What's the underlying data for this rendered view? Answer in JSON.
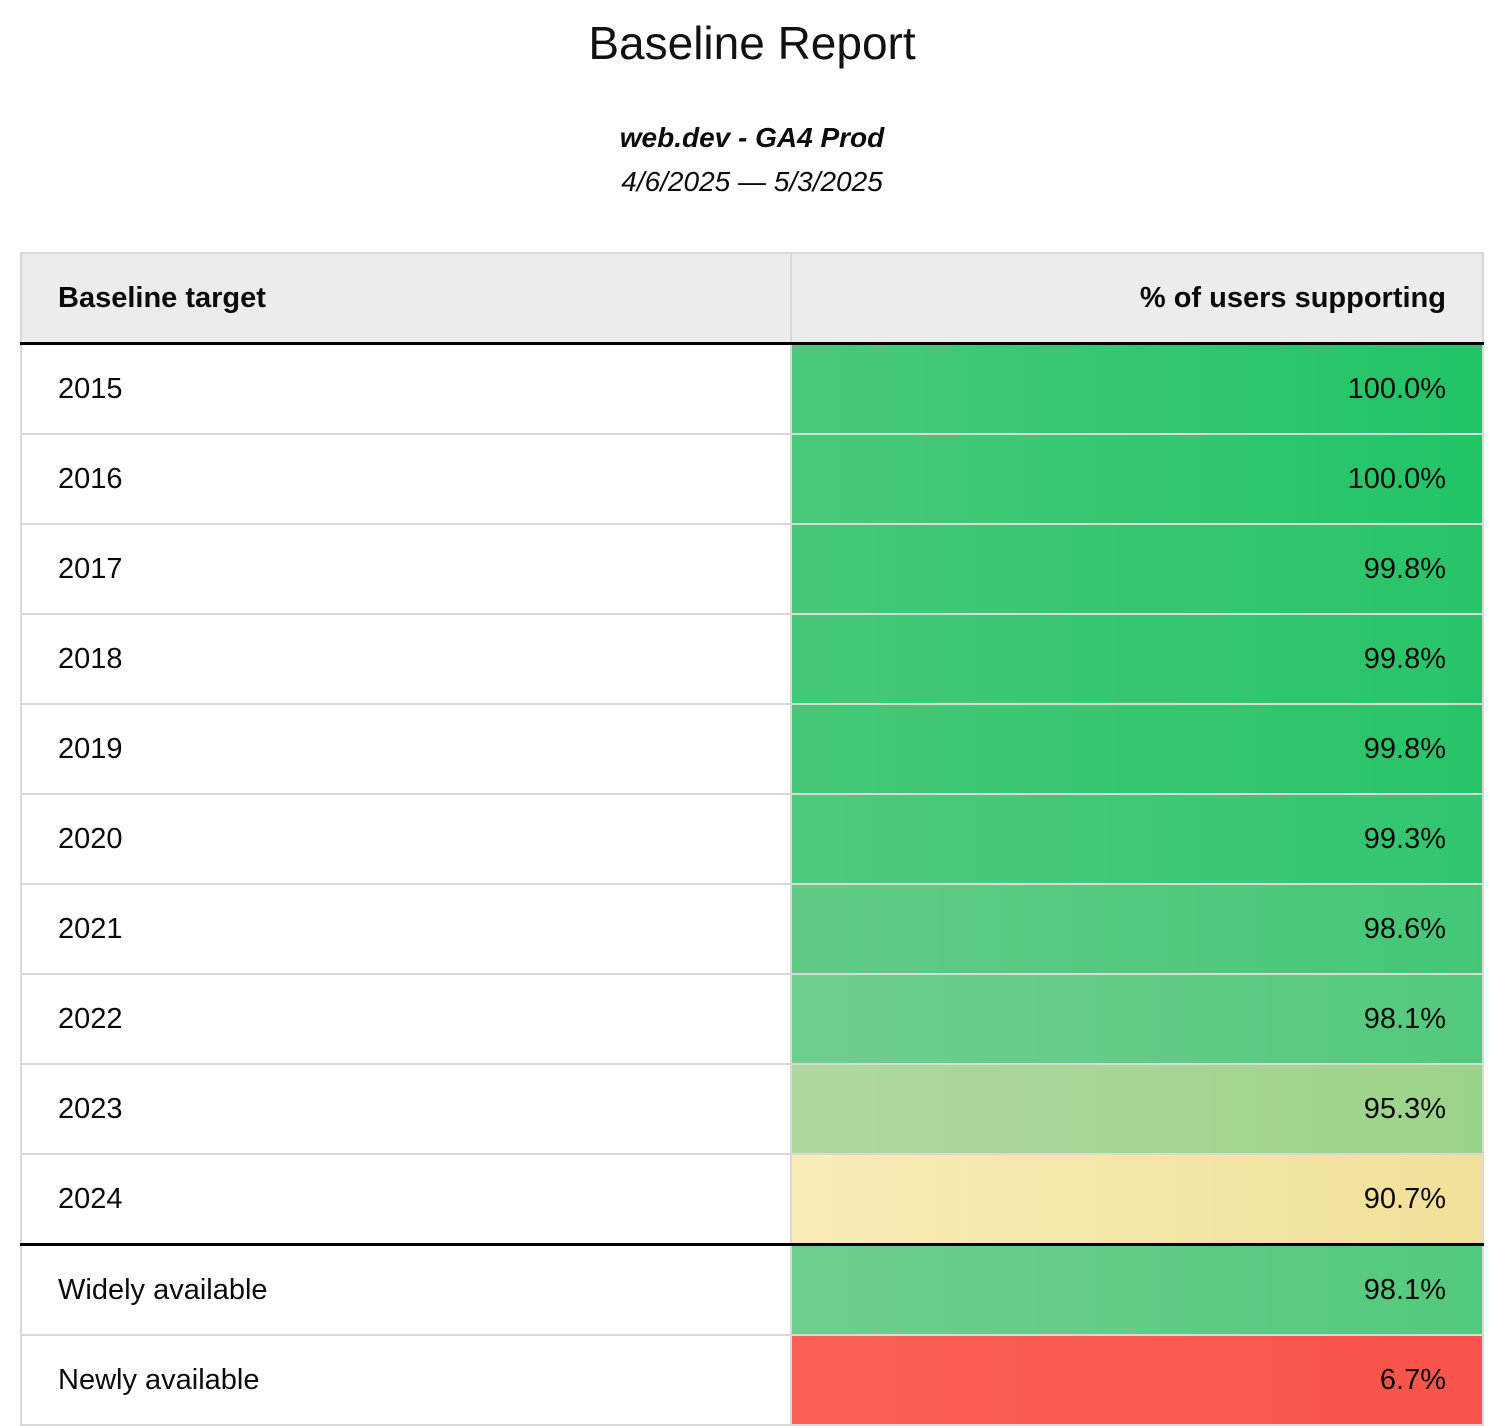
{
  "page": {
    "title": "Baseline Report",
    "subtitle": "web.dev - GA4 Prod",
    "date_range": "4/6/2025 — 5/3/2025"
  },
  "colors": {
    "header_bg": "#ececec",
    "grid_border": "#d9d9d9",
    "section_border": "#000000",
    "text": "#0b0b0b"
  },
  "table": {
    "columns": [
      {
        "label": "Baseline target"
      },
      {
        "label": "% of users supporting"
      }
    ],
    "rows": [
      {
        "label": "2015",
        "value": "100.0%",
        "color_from": "#49c97a",
        "color_to": "#21c466",
        "divider_before": false
      },
      {
        "label": "2016",
        "value": "100.0%",
        "color_from": "#49c97a",
        "color_to": "#21c466",
        "divider_before": false
      },
      {
        "label": "2017",
        "value": "99.8%",
        "color_from": "#45c877",
        "color_to": "#28c469",
        "divider_before": false
      },
      {
        "label": "2018",
        "value": "99.8%",
        "color_from": "#45c877",
        "color_to": "#28c469",
        "divider_before": false
      },
      {
        "label": "2019",
        "value": "99.8%",
        "color_from": "#45c877",
        "color_to": "#28c469",
        "divider_before": false
      },
      {
        "label": "2020",
        "value": "99.3%",
        "color_from": "#4fca7d",
        "color_to": "#31c56f",
        "divider_before": false
      },
      {
        "label": "2021",
        "value": "98.6%",
        "color_from": "#61cb85",
        "color_to": "#43c777",
        "divider_before": false
      },
      {
        "label": "2022",
        "value": "98.1%",
        "color_from": "#70ce8d",
        "color_to": "#52c97c",
        "divider_before": false
      },
      {
        "label": "2023",
        "value": "95.3%",
        "color_from": "#afd89d",
        "color_to": "#9cd38a",
        "divider_before": false
      },
      {
        "label": "2024",
        "value": "90.7%",
        "color_from": "#f9ecb6",
        "color_to": "#f1e099",
        "divider_before": false
      },
      {
        "label": "Widely available",
        "value": "98.1%",
        "color_from": "#70ce8d",
        "color_to": "#52c97c",
        "divider_before": true
      },
      {
        "label": "Newly available",
        "value": "6.7%",
        "color_from": "#fa5f55",
        "color_to": "#f8544b",
        "divider_before": false
      }
    ]
  }
}
